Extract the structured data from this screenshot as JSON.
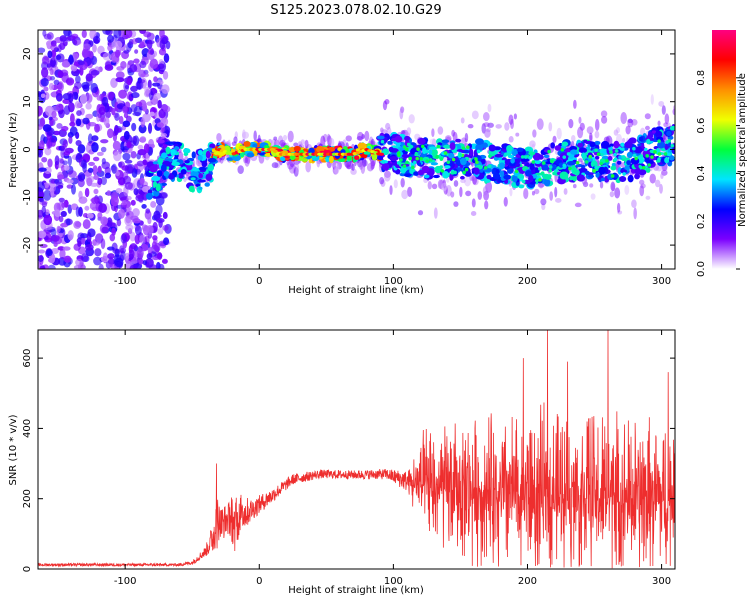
{
  "title": "S125.2023.078.02.10.G29",
  "chart_data": [
    {
      "type": "heatmap",
      "name": "spectrogram",
      "xlabel": "Height of straight line (km)",
      "ylabel": "Frequency (Hz)",
      "xlim": [
        -165,
        310
      ],
      "ylim": [
        -25,
        25
      ],
      "xticks": [
        -100,
        0,
        100,
        200,
        300
      ],
      "yticks": [
        -20,
        -10,
        0,
        10,
        20
      ],
      "ridge": [
        {
          "x": -82,
          "y": -6
        },
        {
          "x": -75,
          "y": -5
        },
        {
          "x": -65,
          "y": -2
        },
        {
          "x": -58,
          "y": -3
        },
        {
          "x": -50,
          "y": -5
        },
        {
          "x": -40,
          "y": -4
        },
        {
          "x": -35,
          "y": -2
        },
        {
          "x": -30,
          "y": 0
        },
        {
          "x": -20,
          "y": -1
        },
        {
          "x": -10,
          "y": 0
        },
        {
          "x": 0,
          "y": 0
        },
        {
          "x": 10,
          "y": 0
        },
        {
          "x": 15,
          "y": -1
        },
        {
          "x": 20,
          "y": -1
        },
        {
          "x": 30,
          "y": -1
        },
        {
          "x": 40,
          "y": -1
        },
        {
          "x": 50,
          "y": -1
        },
        {
          "x": 60,
          "y": -1
        },
        {
          "x": 70,
          "y": -1
        },
        {
          "x": 80,
          "y": 0
        },
        {
          "x": 90,
          "y": -1
        },
        {
          "x": 100,
          "y": -1
        },
        {
          "x": 120,
          "y": -2
        },
        {
          "x": 140,
          "y": -2
        },
        {
          "x": 160,
          "y": -2
        },
        {
          "x": 180,
          "y": -3
        },
        {
          "x": 200,
          "y": -4
        },
        {
          "x": 220,
          "y": -3
        },
        {
          "x": 240,
          "y": -2
        },
        {
          "x": 260,
          "y": -3
        },
        {
          "x": 280,
          "y": -2
        },
        {
          "x": 300,
          "y": 1
        }
      ],
      "colorbar": {
        "label": "Normalized spectral amplitude",
        "range": [
          0,
          1
        ],
        "ticks": [
          0.0,
          0.2,
          0.4,
          0.6,
          0.8
        ],
        "tick_labels": [
          "0.0",
          "0.2",
          "0.4",
          "0.6",
          "0.8"
        ],
        "colors": [
          "#ffffff",
          "#7b00ff",
          "#0000ff",
          "#00e5ff",
          "#00ff3c",
          "#f0ff00",
          "#ff9000",
          "#ff0000",
          "#ff0080"
        ]
      }
    },
    {
      "type": "line",
      "name": "snr",
      "xlabel": "Height of straight line (km)",
      "ylabel": "SNR (10 * v/v)",
      "xlim": [
        -165,
        310
      ],
      "ylim": [
        0,
        680
      ],
      "xticks": [
        -100,
        0,
        100,
        200,
        300
      ],
      "yticks": [
        0,
        200,
        400,
        600
      ],
      "color": "#ee2e2e",
      "envelope": [
        {
          "x": -165,
          "base": 12,
          "spread": 8
        },
        {
          "x": -60,
          "base": 12,
          "spread": 8
        },
        {
          "x": -50,
          "base": 18,
          "spread": 12
        },
        {
          "x": -40,
          "base": 50,
          "spread": 30
        },
        {
          "x": -32,
          "base": 110,
          "spread": 120
        },
        {
          "x": -25,
          "base": 140,
          "spread": 90
        },
        {
          "x": -15,
          "base": 150,
          "spread": 120
        },
        {
          "x": -5,
          "base": 170,
          "spread": 60
        },
        {
          "x": 10,
          "base": 210,
          "spread": 40
        },
        {
          "x": 25,
          "base": 255,
          "spread": 30
        },
        {
          "x": 45,
          "base": 270,
          "spread": 25
        },
        {
          "x": 70,
          "base": 268,
          "spread": 25
        },
        {
          "x": 95,
          "base": 270,
          "spread": 30
        },
        {
          "x": 110,
          "base": 250,
          "spread": 60
        },
        {
          "x": 125,
          "base": 230,
          "spread": 200
        },
        {
          "x": 180,
          "base": 220,
          "spread": 260
        },
        {
          "x": 240,
          "base": 210,
          "spread": 280
        },
        {
          "x": 310,
          "base": 200,
          "spread": 260
        }
      ],
      "peaks": [
        {
          "x": -32,
          "y": 300
        },
        {
          "x": 215,
          "y": 680
        },
        {
          "x": 260,
          "y": 680
        },
        {
          "x": 197,
          "y": 600
        },
        {
          "x": 230,
          "y": 590
        },
        {
          "x": 305,
          "y": 560
        }
      ]
    }
  ]
}
